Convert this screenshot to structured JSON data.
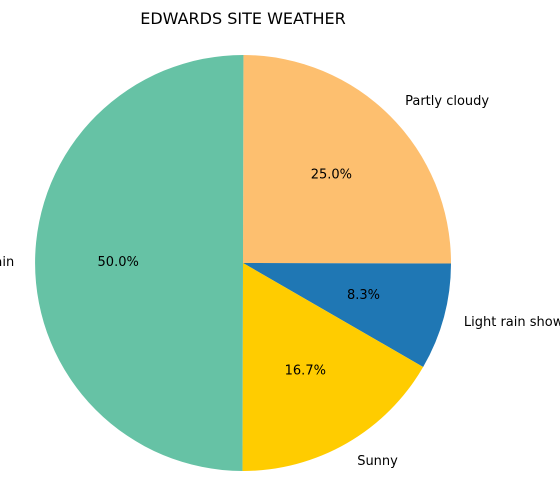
{
  "chart_data": {
    "type": "pie",
    "title": "EDWARDS SITE WEATHER",
    "slices": [
      {
        "label": "Light rain shower",
        "value": 8.3,
        "pct_label": "8.3%",
        "color": "#1f77b4"
      },
      {
        "label": "Partly cloudy",
        "value": 25.0,
        "pct_label": "25.0%",
        "color": "#fdbf6f"
      },
      {
        "label": "Patchy rain",
        "value": 50.0,
        "pct_label": "50.0%",
        "color": "#66c2a5"
      },
      {
        "label": "Sunny",
        "value": 16.7,
        "pct_label": "16.7%",
        "color": "#ffcc00"
      }
    ],
    "start_angle_deg": -30,
    "direction": "counterclockwise"
  }
}
